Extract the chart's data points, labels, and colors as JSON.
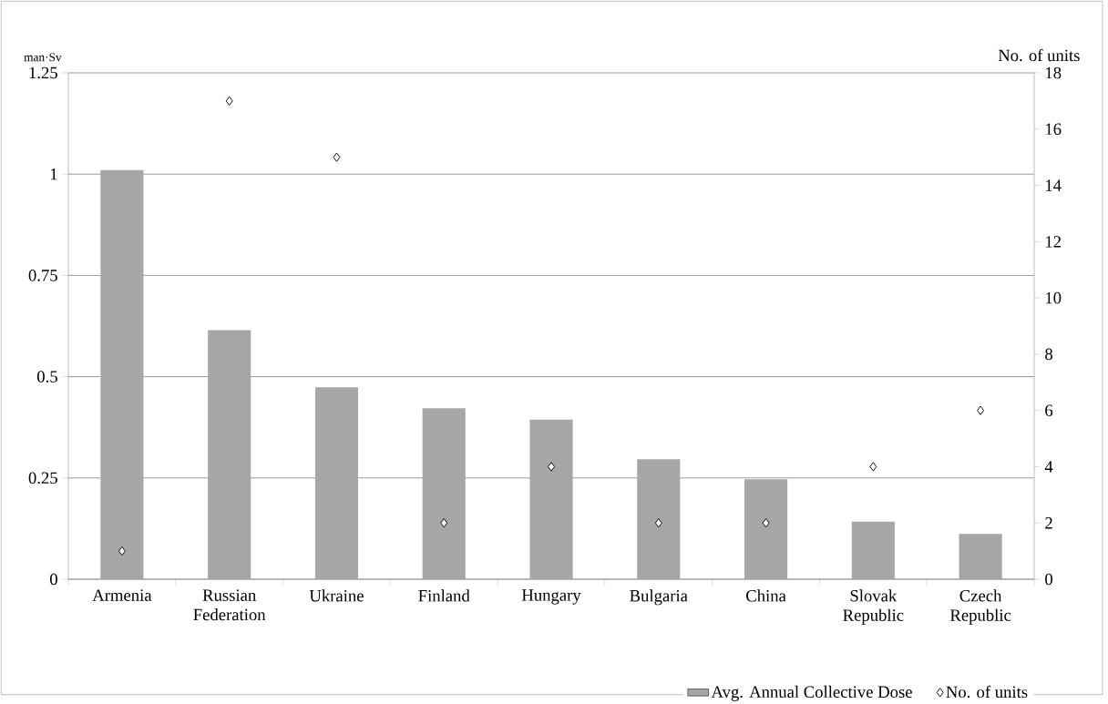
{
  "chart_data": {
    "type": "bar",
    "categories": [
      "Armenia",
      "Russian Federation",
      "Ukraine",
      "Finland",
      "Hungary",
      "Bulgaria",
      "China",
      "Slovak Republic",
      "Czech Republic"
    ],
    "ylabel": "man·Sv",
    "y2label": "No. of units",
    "ylim": [
      0,
      1.25
    ],
    "yticks": [
      0,
      0.25,
      0.5,
      0.75,
      1,
      1.25
    ],
    "y2lim": [
      0,
      18
    ],
    "y2ticks": [
      0,
      2,
      4,
      6,
      8,
      10,
      12,
      14,
      16,
      18
    ],
    "grid": "y",
    "legend": "bottom",
    "series": [
      {
        "name": "Avg. Annual Collective Dose",
        "color": "#a6a6a6",
        "values": [
          1.01,
          0.615,
          0.474,
          0.422,
          0.394,
          0.296,
          0.247,
          0.142,
          0.112
        ]
      },
      {
        "name": "No. of units",
        "type": "scatter",
        "axis": "y2",
        "marker": "diamond",
        "color": "#000000",
        "values": [
          1,
          17,
          15,
          2,
          4,
          2,
          2,
          4,
          6
        ]
      }
    ]
  }
}
